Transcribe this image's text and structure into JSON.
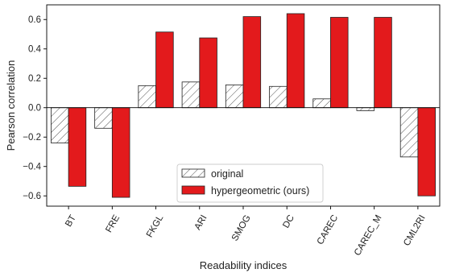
{
  "chart_data": {
    "type": "bar",
    "categories": [
      "BT",
      "FRE",
      "FKGL",
      "ARI",
      "SMOG",
      "DC",
      "CAREC",
      "CAREC_M",
      "CML2RI"
    ],
    "series": [
      {
        "name": "original",
        "values": [
          -0.24,
          -0.14,
          0.15,
          0.175,
          0.155,
          0.145,
          0.06,
          -0.02,
          -0.335
        ],
        "fill": "hatch"
      },
      {
        "name": "hypergeometric (ours)",
        "values": [
          -0.535,
          -0.61,
          0.515,
          0.475,
          0.62,
          0.64,
          0.615,
          0.615,
          -0.6
        ],
        "fill": "#e31a1c"
      }
    ],
    "xlabel": "Readability indices",
    "ylabel": "Pearson correlation",
    "ylim": [
      -0.67,
      0.7
    ],
    "yticks": [
      -0.6,
      -0.4,
      -0.2,
      0.0,
      0.2,
      0.4,
      0.6
    ],
    "ytick_labels": [
      "−0.6",
      "−0.4",
      "−0.2",
      "0.0",
      "0.2",
      "0.4",
      "0.6"
    ],
    "legend_position": "bottom-center",
    "zero_line": true,
    "grid": false
  }
}
